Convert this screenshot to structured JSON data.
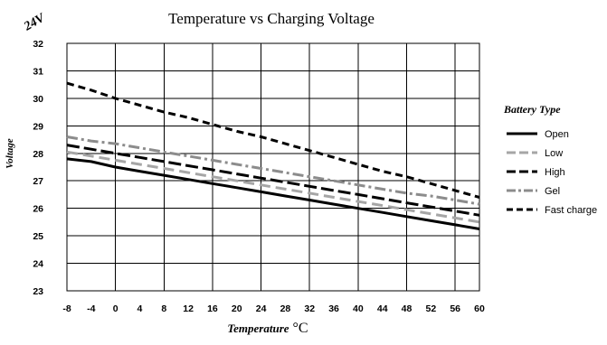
{
  "chart_data": {
    "type": "line",
    "title": "Temperature vs Charging Voltage",
    "corner_label": "24V",
    "xlabel": "Temperature",
    "xlabel_unit": "°C",
    "ylabel": "Voltage",
    "x": [
      -8,
      -4,
      0,
      4,
      8,
      12,
      16,
      20,
      24,
      28,
      32,
      36,
      40,
      44,
      48,
      52,
      56,
      60
    ],
    "xlim": [
      -8,
      60
    ],
    "ylim": [
      23,
      32
    ],
    "yticks": [
      23,
      24,
      25,
      26,
      27,
      28,
      29,
      30,
      31,
      32
    ],
    "grid": true,
    "legend_title": "Battery Type",
    "legend_position": "right",
    "series": [
      {
        "name": "Open",
        "style": "solid",
        "color": "#000000",
        "values": [
          27.8,
          27.7,
          27.5,
          27.35,
          27.2,
          27.05,
          26.9,
          26.75,
          26.6,
          26.45,
          26.3,
          26.15,
          26.0,
          25.85,
          25.7,
          25.55,
          25.4,
          25.25
        ]
      },
      {
        "name": "Low",
        "style": "dash",
        "color": "#a6a6a6",
        "values": [
          28.05,
          27.9,
          27.75,
          27.6,
          27.45,
          27.3,
          27.15,
          27.0,
          26.85,
          26.7,
          26.55,
          26.4,
          26.25,
          26.1,
          25.95,
          25.8,
          25.65,
          25.5
        ]
      },
      {
        "name": "High",
        "style": "longdash",
        "color": "#000000",
        "values": [
          28.3,
          28.15,
          28.0,
          27.85,
          27.7,
          27.55,
          27.4,
          27.25,
          27.1,
          26.95,
          26.8,
          26.65,
          26.5,
          26.35,
          26.2,
          26.05,
          25.9,
          25.75
        ]
      },
      {
        "name": "Gel",
        "style": "dashdot",
        "color": "#8c8c8c",
        "values": [
          28.6,
          28.45,
          28.35,
          28.2,
          28.05,
          27.9,
          27.75,
          27.6,
          27.45,
          27.3,
          27.15,
          27.0,
          26.85,
          26.7,
          26.55,
          26.45,
          26.3,
          26.15
        ]
      },
      {
        "name": "Fast charge",
        "style": "shortdash",
        "color": "#000000",
        "values": [
          30.55,
          30.3,
          30.0,
          29.75,
          29.5,
          29.3,
          29.05,
          28.8,
          28.6,
          28.35,
          28.1,
          27.85,
          27.6,
          27.35,
          27.15,
          26.9,
          26.65,
          26.4
        ]
      }
    ]
  }
}
